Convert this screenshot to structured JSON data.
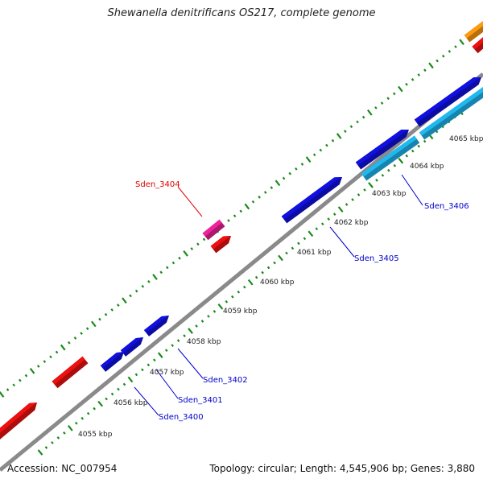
{
  "title": "Shewanella denitrificans OS217, complete genome",
  "footer": {
    "accession": "Accession: NC_007954",
    "stats": "Topology: circular; Length: 4,545,906 bp; Genes: 3,880"
  },
  "colors": {
    "backbone": "#8a8a8a",
    "tick": "#1a8a1a",
    "gene_blue": "#1010e0",
    "gene_lightblue": "#20b8f0",
    "gene_red": "#ee1010",
    "gene_pink": "#ee2299",
    "gene_orange": "#ff9a10",
    "label_red": "#dd0000",
    "label_blue": "#0000cc"
  },
  "scale_labels": [
    "4055 kbp",
    "4056 kbp",
    "4057 kbp",
    "4058 kbp",
    "4059 kbp",
    "4060 kbp",
    "4061 kbp",
    "4062 kbp",
    "4063 kbp",
    "4064 kbp",
    "4065 kbp"
  ],
  "gene_labels": [
    {
      "name": "Sden_3404",
      "color": "label_red"
    },
    {
      "name": "Sden_3406",
      "color": "label_blue"
    },
    {
      "name": "Sden_3405",
      "color": "label_blue"
    },
    {
      "name": "Sden_3402",
      "color": "label_blue"
    },
    {
      "name": "Sden_3401",
      "color": "label_blue"
    },
    {
      "name": "Sden_3400",
      "color": "label_blue"
    }
  ]
}
